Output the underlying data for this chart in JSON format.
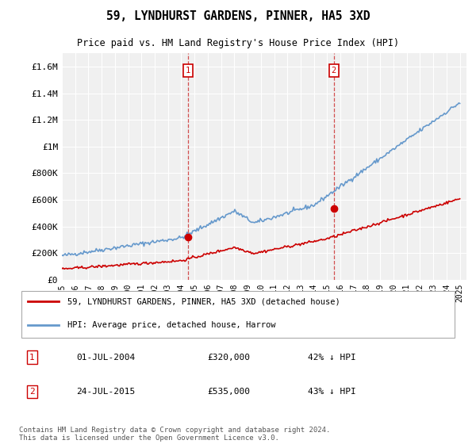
{
  "title": "59, LYNDHURST GARDENS, PINNER, HA5 3XD",
  "subtitle": "Price paid vs. HM Land Registry's House Price Index (HPI)",
  "legend_label_red": "59, LYNDHURST GARDENS, PINNER, HA5 3XD (detached house)",
  "legend_label_blue": "HPI: Average price, detached house, Harrow",
  "annotation1": {
    "label": "1",
    "date_x": 2004.5,
    "price": 320000,
    "text": "01-JUL-2004",
    "amount": "£320,000",
    "pct": "42% ↓ HPI"
  },
  "annotation2": {
    "label": "2",
    "date_x": 2015.5,
    "price": 535000,
    "text": "24-JUL-2015",
    "amount": "£535,000",
    "pct": "43% ↓ HPI"
  },
  "footer": "Contains HM Land Registry data © Crown copyright and database right 2024.\nThis data is licensed under the Open Government Licence v3.0.",
  "ylim": [
    0,
    1700000
  ],
  "xlim": [
    1995,
    2025.5
  ],
  "yticks": [
    0,
    200000,
    400000,
    600000,
    800000,
    1000000,
    1200000,
    1400000,
    1600000
  ],
  "ytick_labels": [
    "£0",
    "£200K",
    "£400K",
    "£600K",
    "£800K",
    "£1M",
    "£1.2M",
    "£1.4M",
    "£1.6M"
  ],
  "bg_color": "#ffffff",
  "plot_bg_color": "#f0f0f0",
  "grid_color": "#ffffff",
  "red_color": "#cc0000",
  "blue_color": "#6699cc",
  "dashed_color": "#cc3333"
}
